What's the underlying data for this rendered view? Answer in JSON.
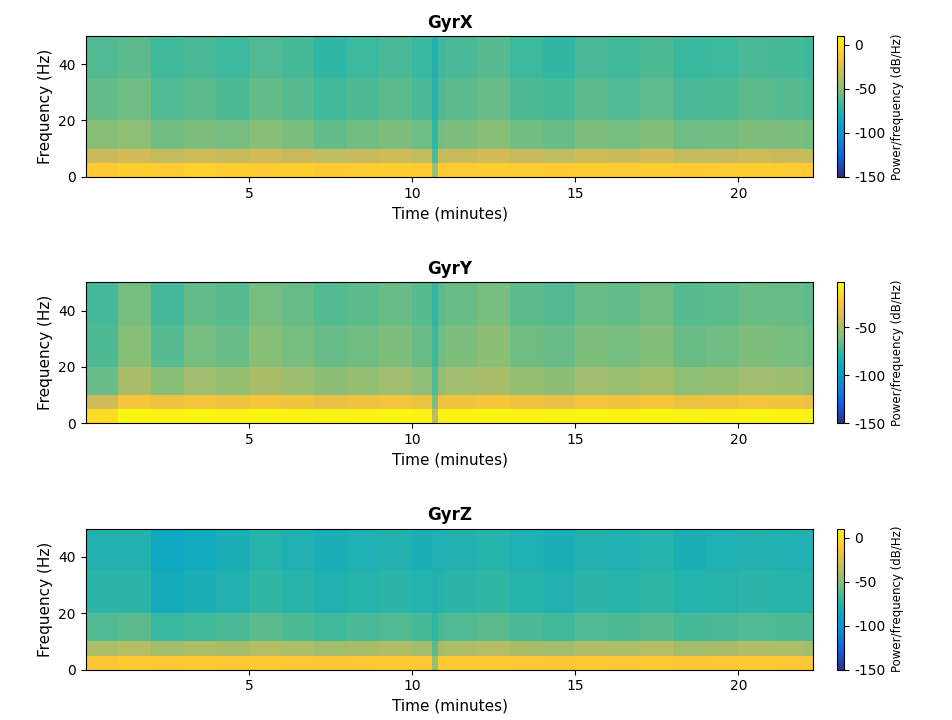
{
  "chart_data": [
    {
      "type": "heatmap",
      "title": "GyrX",
      "x_label": "Time (minutes)",
      "y_label": "Frequency (Hz)",
      "xlim": [
        0,
        22.3
      ],
      "xticks": [
        5,
        10,
        15,
        20
      ],
      "ylim": [
        0,
        50
      ],
      "yticks": [
        0,
        20,
        40
      ],
      "x_edges": [
        0,
        1,
        2,
        3,
        4,
        5,
        6,
        7,
        8,
        9,
        10,
        10.6,
        10.8,
        11,
        12,
        13,
        14,
        15,
        16,
        17,
        18,
        19,
        20,
        21,
        22,
        22.3
      ],
      "y_edges": [
        0,
        5,
        10,
        20,
        35,
        50
      ],
      "cells": [
        [
          -10,
          -8,
          -9,
          -7,
          -8,
          -9,
          -8,
          -10,
          -9,
          -8,
          -9,
          -45,
          -10,
          -9,
          -8,
          -9,
          -10,
          -8,
          -9,
          -8,
          -10,
          -9,
          -8,
          -9,
          -10
        ],
        [
          -32,
          -30,
          -34,
          -31,
          -33,
          -30,
          -32,
          -35,
          -33,
          -31,
          -34,
          -62,
          -33,
          -32,
          -30,
          -33,
          -35,
          -31,
          -32,
          -30,
          -34,
          -33,
          -31,
          -32,
          -34
        ],
        [
          -50,
          -48,
          -55,
          -52,
          -54,
          -50,
          -53,
          -58,
          -55,
          -52,
          -56,
          -70,
          -54,
          -52,
          -50,
          -55,
          -57,
          -52,
          -54,
          -51,
          -56,
          -55,
          -52,
          -53,
          -55
        ],
        [
          -58,
          -56,
          -62,
          -60,
          -63,
          -58,
          -61,
          -66,
          -63,
          -60,
          -64,
          -74,
          -62,
          -60,
          -57,
          -63,
          -65,
          -60,
          -62,
          -59,
          -64,
          -63,
          -60,
          -61,
          -63
        ],
        [
          -62,
          -60,
          -66,
          -64,
          -67,
          -62,
          -65,
          -70,
          -67,
          -64,
          -68,
          -76,
          -66,
          -64,
          -61,
          -67,
          -69,
          -64,
          -66,
          -63,
          -68,
          -67,
          -64,
          -65,
          -67
        ]
      ],
      "colorbar_range": [
        -150,
        10
      ],
      "colorbar_ticks": [
        0,
        -50,
        -100,
        -150
      ],
      "colorbar_label": "Power/frequency (dB/Hz)"
    },
    {
      "type": "heatmap",
      "title": "GyrY",
      "x_label": "Time (minutes)",
      "y_label": "Frequency (Hz)",
      "xlim": [
        0,
        22.3
      ],
      "xticks": [
        5,
        10,
        15,
        20
      ],
      "ylim": [
        0,
        50
      ],
      "yticks": [
        0,
        20,
        40
      ],
      "x_edges": [
        0,
        1,
        2,
        3,
        4,
        5,
        6,
        7,
        8,
        9,
        10,
        10.6,
        10.8,
        11,
        12,
        13,
        14,
        15,
        16,
        17,
        18,
        19,
        20,
        21,
        22,
        22.3
      ],
      "y_edges": [
        0,
        5,
        10,
        20,
        35,
        50
      ],
      "cells": [
        [
          -15,
          -5,
          -6,
          -5,
          -6,
          -5,
          -6,
          -7,
          -6,
          -5,
          -6,
          -45,
          -7,
          -6,
          -5,
          -6,
          -7,
          -5,
          -6,
          -5,
          -7,
          -6,
          -5,
          -6,
          -7
        ],
        [
          -40,
          -25,
          -28,
          -26,
          -28,
          -25,
          -27,
          -30,
          -28,
          -26,
          -29,
          -60,
          -28,
          -27,
          -25,
          -28,
          -30,
          -26,
          -27,
          -25,
          -29,
          -28,
          -26,
          -27,
          -29
        ],
        [
          -65,
          -50,
          -58,
          -52,
          -55,
          -50,
          -53,
          -57,
          -55,
          -52,
          -56,
          -70,
          -55,
          -52,
          -50,
          -55,
          -57,
          -52,
          -54,
          -51,
          -56,
          -55,
          -52,
          -53,
          -55
        ],
        [
          -70,
          -58,
          -68,
          -62,
          -64,
          -58,
          -61,
          -65,
          -63,
          -60,
          -64,
          -74,
          -63,
          -60,
          -57,
          -63,
          -65,
          -60,
          -62,
          -59,
          -64,
          -63,
          -60,
          -61,
          -63
        ],
        [
          -72,
          -62,
          -72,
          -66,
          -68,
          -62,
          -65,
          -69,
          -67,
          -64,
          -68,
          -76,
          -67,
          -64,
          -61,
          -67,
          -69,
          -64,
          -66,
          -63,
          -68,
          -67,
          -64,
          -65,
          -67
        ]
      ],
      "colorbar_range": [
        -150,
        -3
      ],
      "colorbar_ticks": [
        -50,
        -100,
        -150
      ],
      "colorbar_label": "Power/frequency (dB/Hz)"
    },
    {
      "type": "heatmap",
      "title": "GyrZ",
      "x_label": "Time (minutes)",
      "y_label": "Frequency (Hz)",
      "xlim": [
        0,
        22.3
      ],
      "xticks": [
        5,
        10,
        15,
        20
      ],
      "ylim": [
        0,
        50
      ],
      "yticks": [
        0,
        20,
        40
      ],
      "x_edges": [
        0,
        1,
        2,
        3,
        4,
        5,
        6,
        7,
        8,
        9,
        10,
        10.6,
        10.8,
        11,
        12,
        13,
        14,
        15,
        16,
        17,
        18,
        19,
        20,
        21,
        22,
        22.3
      ],
      "y_edges": [
        0,
        5,
        10,
        20,
        35,
        50
      ],
      "cells": [
        [
          -12,
          -10,
          -11,
          -10,
          -11,
          -10,
          -11,
          -12,
          -11,
          -10,
          -11,
          -45,
          -11,
          -10,
          -10,
          -11,
          -12,
          -10,
          -11,
          -10,
          -12,
          -11,
          -10,
          -11,
          -12
        ],
        [
          -40,
          -38,
          -42,
          -40,
          -41,
          -38,
          -40,
          -42,
          -41,
          -39,
          -42,
          -60,
          -41,
          -40,
          -38,
          -41,
          -42,
          -39,
          -40,
          -38,
          -42,
          -41,
          -39,
          -40,
          -42
        ],
        [
          -62,
          -60,
          -68,
          -66,
          -64,
          -60,
          -63,
          -66,
          -64,
          -62,
          -65,
          -70,
          -64,
          -62,
          -60,
          -64,
          -66,
          -62,
          -63,
          -61,
          -65,
          -64,
          -62,
          -63,
          -64
        ],
        [
          -72,
          -72,
          -82,
          -80,
          -76,
          -70,
          -73,
          -76,
          -74,
          -72,
          -75,
          -76,
          -74,
          -72,
          -70,
          -74,
          -76,
          -72,
          -73,
          -71,
          -75,
          -74,
          -72,
          -73,
          -74
        ],
        [
          -76,
          -76,
          -86,
          -84,
          -80,
          -74,
          -77,
          -80,
          -78,
          -76,
          -79,
          -78,
          -78,
          -76,
          -74,
          -78,
          -80,
          -76,
          -77,
          -75,
          -79,
          -78,
          -76,
          -77,
          -78
        ]
      ],
      "colorbar_range": [
        -150,
        10
      ],
      "colorbar_ticks": [
        0,
        -50,
        -100,
        -150
      ],
      "colorbar_label": "Power/frequency (dB/Hz)"
    }
  ]
}
